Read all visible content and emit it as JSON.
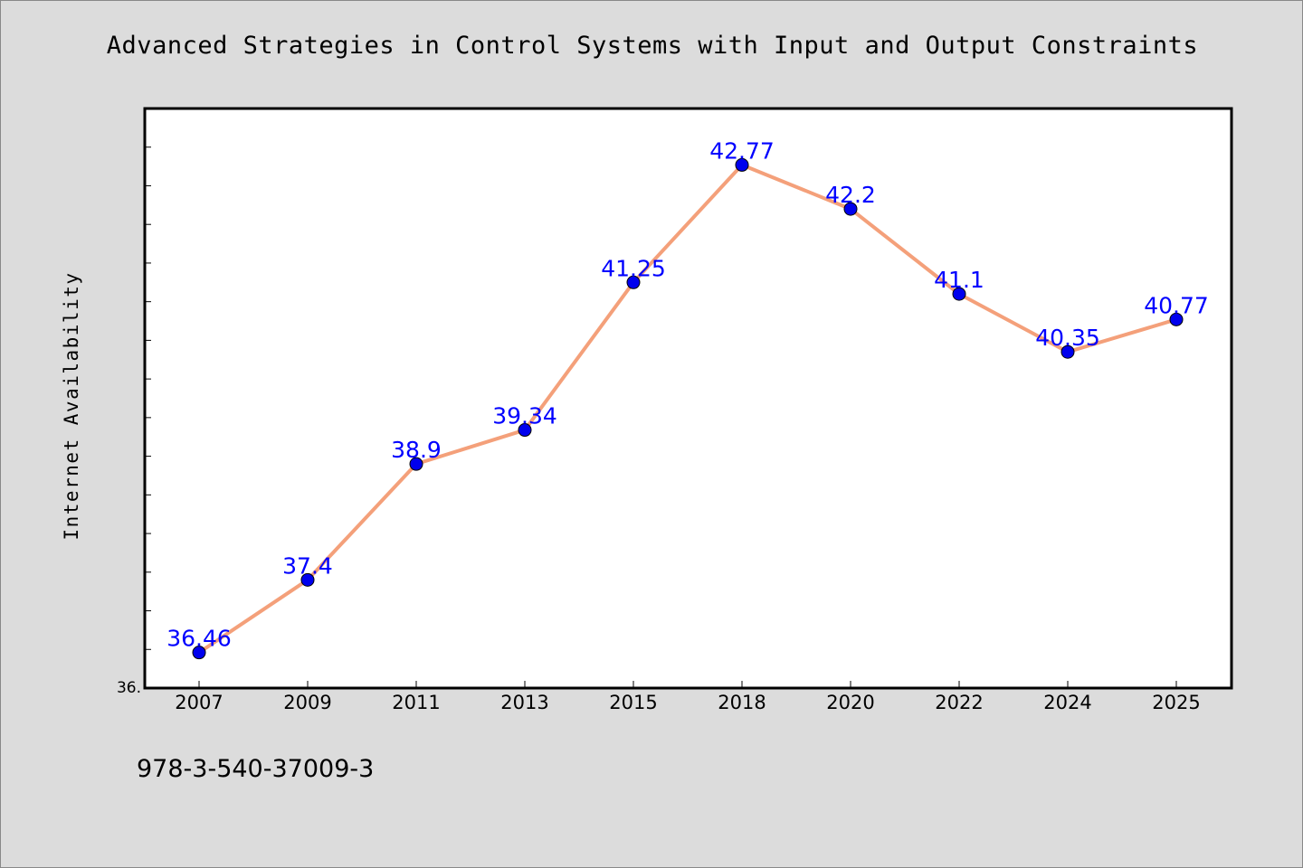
{
  "chart_data": {
    "type": "line",
    "title": "Advanced Strategies in Control Systems with Input and Output Constraints",
    "xlabel": "",
    "ylabel": "Internet Availability",
    "categories": [
      "2007",
      "2009",
      "2011",
      "2013",
      "2015",
      "2018",
      "2020",
      "2022",
      "2024",
      "2025"
    ],
    "series": [
      {
        "values": [
          36.46,
          37.4,
          38.9,
          39.34,
          41.25,
          42.77,
          42.2,
          41.1,
          40.35,
          40.77
        ],
        "labels": [
          "36.46",
          "37.4",
          "38.9",
          "39.34",
          "41.25",
          "42.77",
          "42.2",
          "41.1",
          "40.35",
          "40.77"
        ],
        "line_color": "#f4a07a",
        "marker_color": "#0000ee",
        "label_color": "#0000ff"
      }
    ],
    "ylim": [
      36.0,
      43.5
    ],
    "y_tick_label": "36.",
    "y_minor_step": 0.5,
    "grid": false,
    "legend": "none"
  },
  "footer": {
    "isbn": "978-3-540-37009-3"
  },
  "colors": {
    "background": "#dcdcdc",
    "plot_area": "#ffffff"
  }
}
